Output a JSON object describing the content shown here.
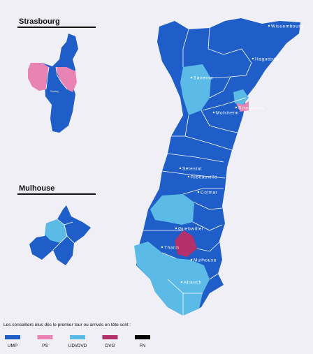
{
  "insets": [
    {
      "title": "Strasbourg"
    },
    {
      "title": "Mulhouse"
    }
  ],
  "cities": [
    "Wissembourg",
    "Haguenau",
    "Saverne",
    "Molsheim",
    "Strasbourg",
    "Sélestat",
    "Ribeauvillé",
    "Colmar",
    "Guebwiller",
    "Thann",
    "Mulhouse",
    "Altkirch"
  ],
  "legend": {
    "title": "Les conseillers élus dès le premier tour ou arrivés en tête sont :",
    "items": [
      {
        "name": "UMP",
        "color": "#1f5ec8"
      },
      {
        "name": "PS",
        "color": "#e883b4"
      },
      {
        "name": "UDI/DVD",
        "color": "#5bbbe6"
      },
      {
        "name": "DVG",
        "color": "#b3306b"
      },
      {
        "name": "FN",
        "color": "#000000"
      }
    ]
  }
}
